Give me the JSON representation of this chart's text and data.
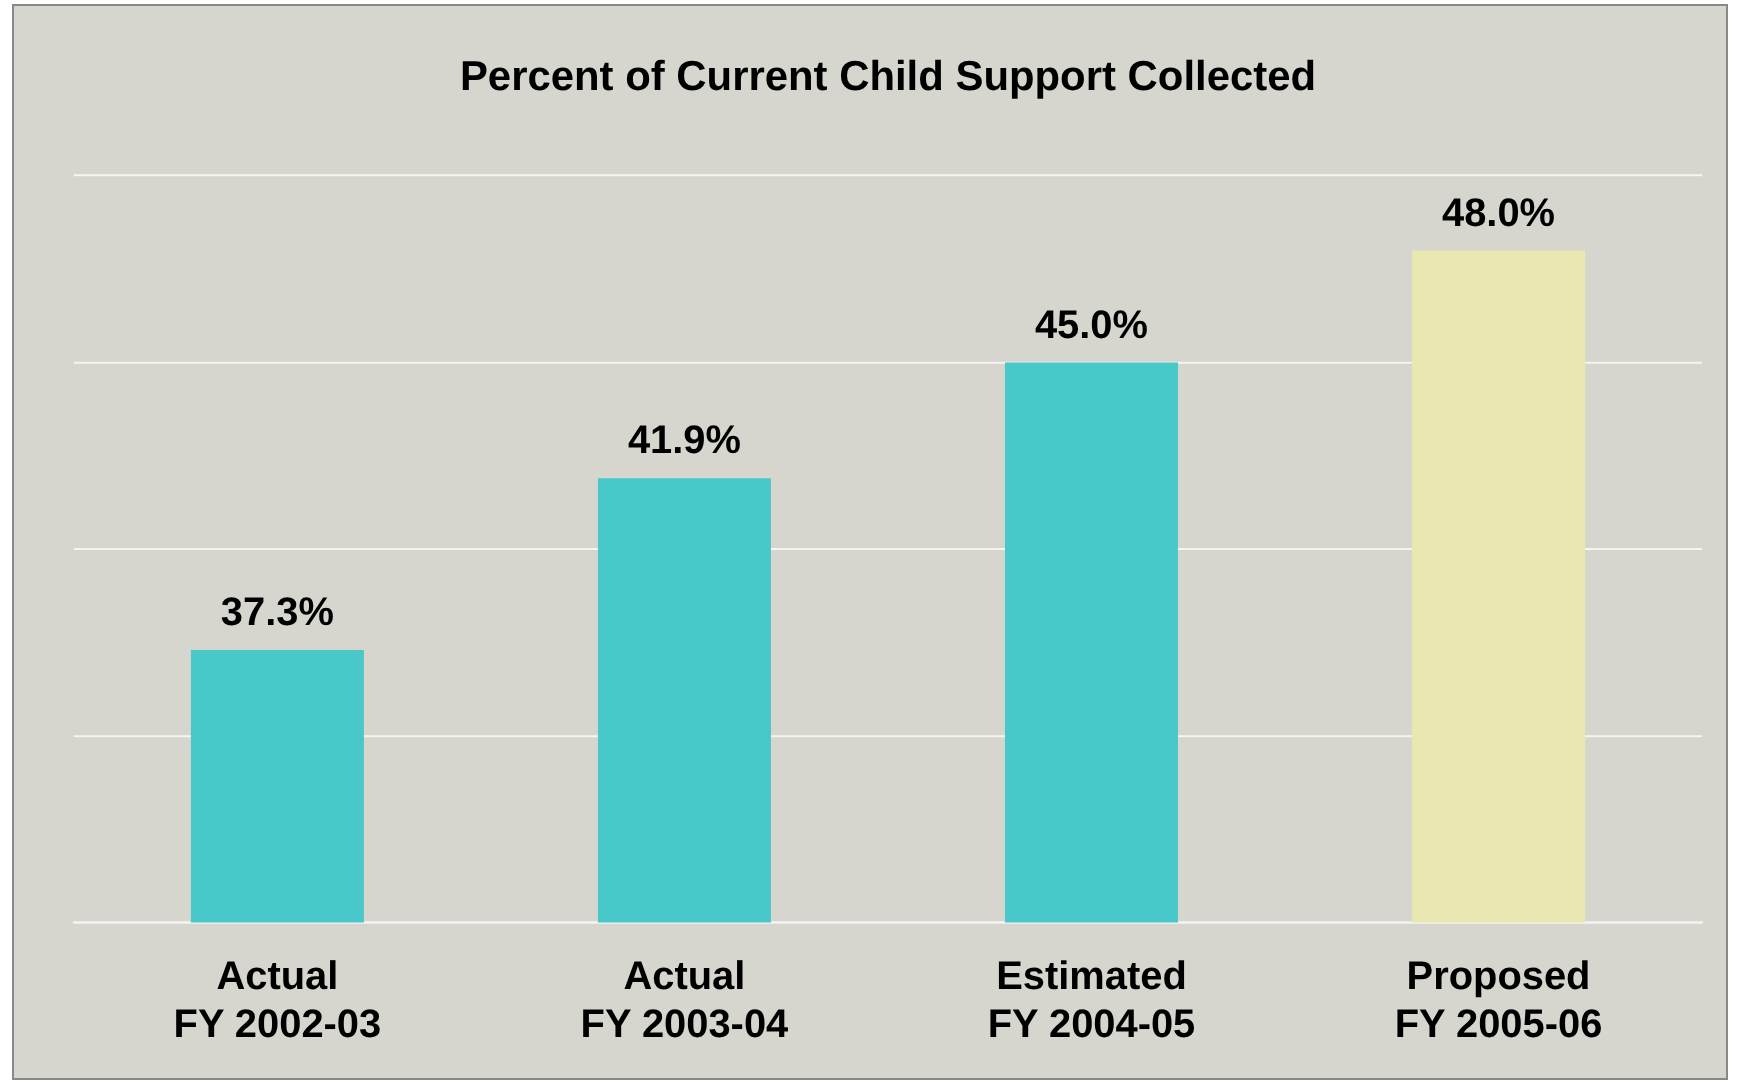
{
  "chart_data": {
    "type": "bar",
    "title": "Percent of Current Child Support Collected",
    "categories": [
      "Actual\nFY 2002-03",
      "Actual\nFY 2003-04",
      "Estimated\nFY 2004-05",
      "Proposed\nFY 2005-06"
    ],
    "values": [
      37.3,
      41.9,
      45.0,
      48.0
    ],
    "value_labels": [
      "37.3%",
      "41.9%",
      "45.0%",
      "48.0%"
    ],
    "colors": [
      "#48c8c8",
      "#48c8c8",
      "#48c8c8",
      "#e8e8b0"
    ],
    "ylim": [
      30,
      50
    ],
    "yticks": [
      {
        "value": 30,
        "label": null
      },
      {
        "value": 35,
        "label": null
      },
      {
        "value": 40,
        "label": null
      },
      {
        "value": 45,
        "label": null
      },
      {
        "value": 50,
        "label": null
      }
    ],
    "tick_labels": "x",
    "grid": "y",
    "legend": false
  }
}
